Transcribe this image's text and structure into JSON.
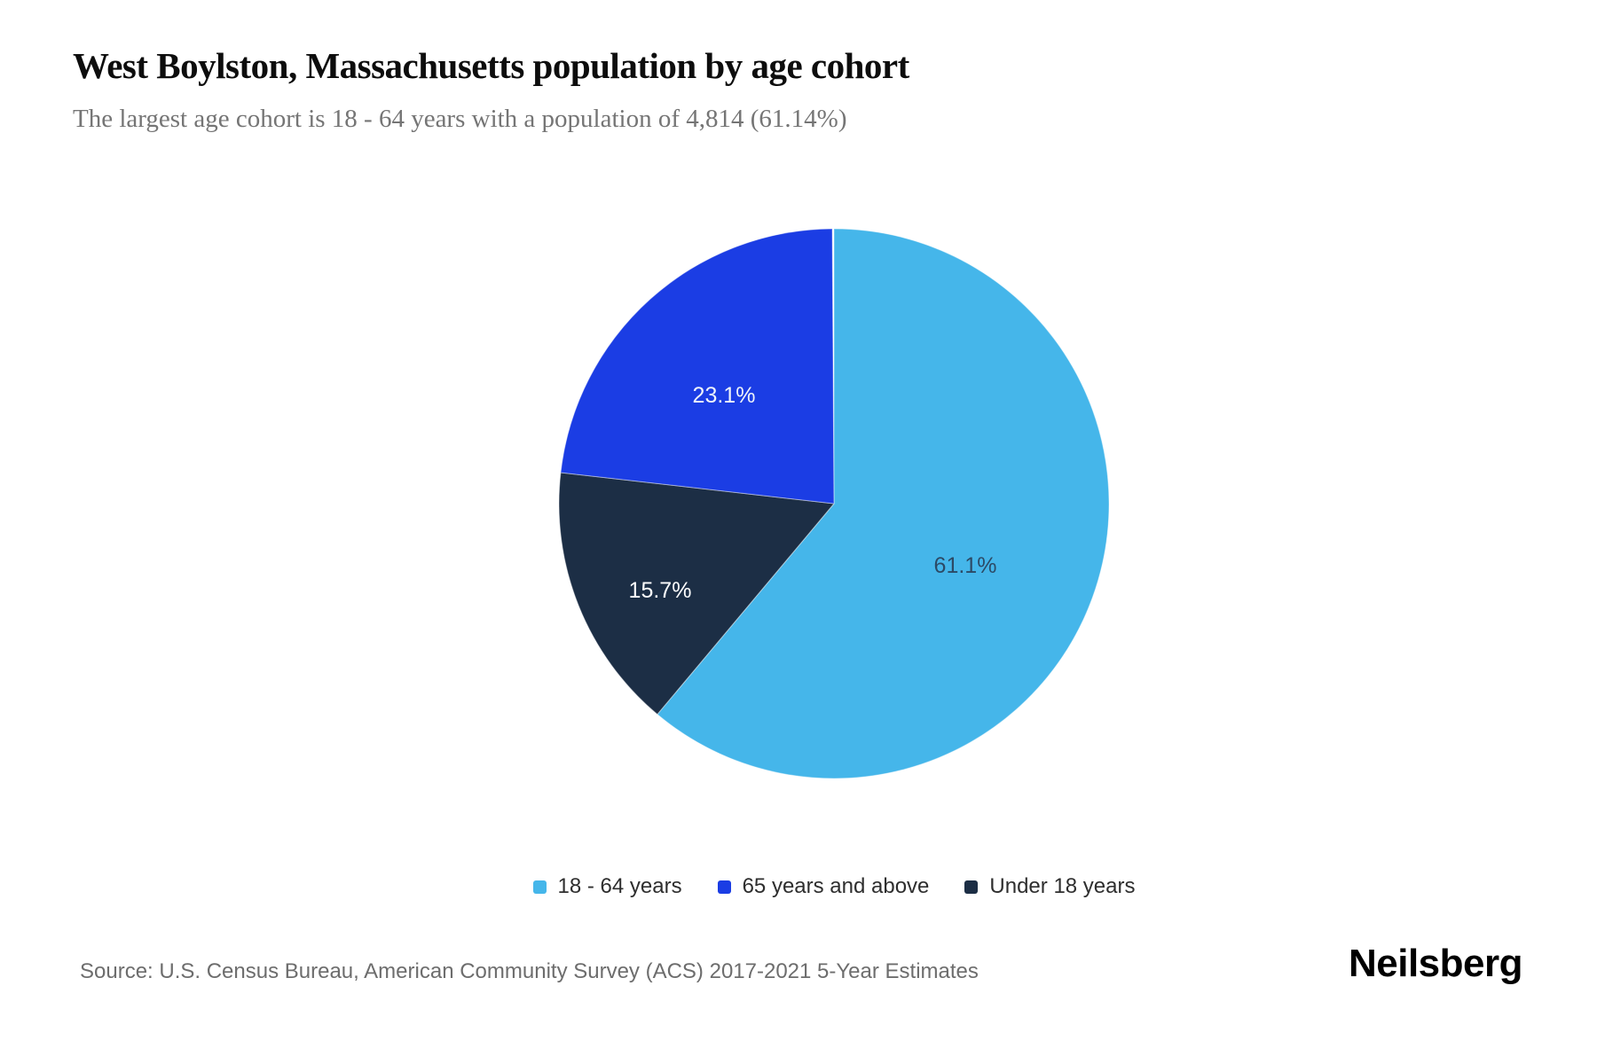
{
  "header": {
    "title": "West Boylston, Massachusetts population by age cohort",
    "subtitle": "The largest age cohort is 18 - 64 years with a population of 4,814 (61.14%)"
  },
  "chart_data": {
    "type": "pie",
    "title": "West Boylston, Massachusetts population by age cohort",
    "unit": "percent of total population",
    "start_angle_deg": 0,
    "direction": "clockwise",
    "slices": [
      {
        "label": "18 - 64 years",
        "pct": 61.1,
        "display": "61.1%",
        "population": 4814,
        "color": "#45B6EA",
        "label_color": "#2C4A66"
      },
      {
        "label": "Under 18 years",
        "pct": 15.7,
        "display": "15.7%",
        "color": "#1C2E45",
        "label_color": "#FFFFFF"
      },
      {
        "label": "65 years and above",
        "pct": 23.1,
        "display": "23.1%",
        "color": "#1B3DE4",
        "label_color": "#EEF3FA"
      }
    ],
    "legend_position": "bottom-center"
  },
  "legend": {
    "items": [
      {
        "label": "18 - 64 years",
        "color": "#45B6EA"
      },
      {
        "label": "65 years and above",
        "color": "#1B3DE4"
      },
      {
        "label": "Under 18 years",
        "color": "#1C2E45"
      }
    ]
  },
  "footer": {
    "source": "Source: U.S. Census Bureau, American Community Survey (ACS) 2017-2021 5-Year Estimates",
    "brand": "Neilsberg"
  }
}
